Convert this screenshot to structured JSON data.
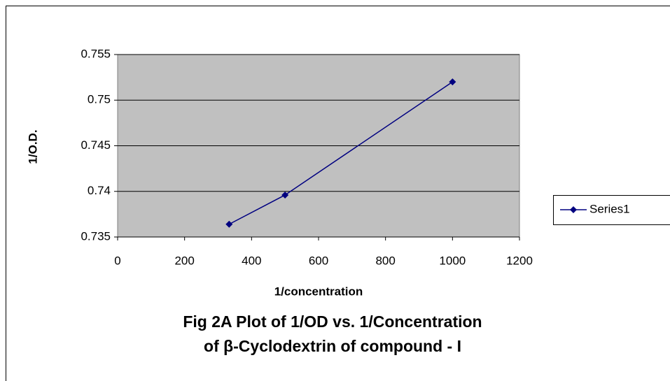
{
  "chart_data": {
    "type": "line",
    "title": [
      "Fig 2A Plot of 1/OD vs. 1/Concentration",
      "of β-Cyclodextrin of compound - I"
    ],
    "x_label": "1/concentration",
    "y_label": "1/O.D.",
    "x": [
      333,
      500,
      1000
    ],
    "series": [
      {
        "name": "Series1",
        "color": "#000080",
        "values": [
          0.7364,
          0.7396,
          0.752
        ]
      }
    ],
    "xlim": [
      0,
      1200
    ],
    "xticks": [
      0,
      200,
      400,
      600,
      800,
      1000,
      1200
    ],
    "ylim": [
      0.735,
      0.755
    ],
    "yticks": [
      0.735,
      0.74,
      0.745,
      0.75,
      0.755
    ],
    "grid": true,
    "legend": "right"
  }
}
